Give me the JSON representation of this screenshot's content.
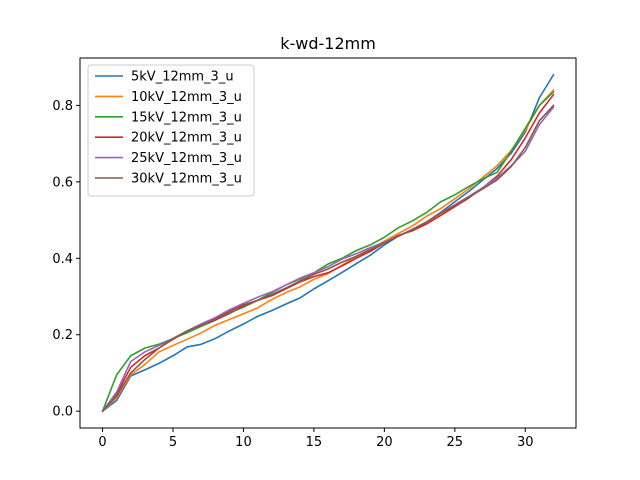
{
  "chart_data": {
    "type": "line",
    "title": "k-wd-12mm",
    "xlabel": "",
    "ylabel": "",
    "xlim": [
      -1.6,
      33.6
    ],
    "ylim": [
      -0.044,
      0.924
    ],
    "xticks": [
      0,
      5,
      10,
      15,
      20,
      25,
      30
    ],
    "yticks": [
      0.0,
      0.2,
      0.4,
      0.6,
      0.8
    ],
    "ytick_labels": [
      "0.0",
      "0.2",
      "0.4",
      "0.6",
      "0.8"
    ],
    "grid": false,
    "legend_position": "upper-left",
    "x": [
      0,
      1,
      2,
      3,
      4,
      5,
      6,
      7,
      8,
      9,
      10,
      11,
      12,
      13,
      14,
      15,
      16,
      17,
      18,
      19,
      20,
      21,
      22,
      23,
      24,
      25,
      26,
      27,
      28,
      29,
      30,
      31,
      32
    ],
    "series": [
      {
        "name": "5kV_12mm_3_u",
        "color": "#1f77b4",
        "values": [
          0.0,
          0.028,
          0.092,
          0.108,
          0.125,
          0.145,
          0.168,
          0.175,
          0.19,
          0.21,
          0.228,
          0.248,
          0.263,
          0.28,
          0.296,
          0.32,
          0.341,
          0.363,
          0.386,
          0.408,
          0.435,
          0.458,
          0.476,
          0.495,
          0.52,
          0.548,
          0.575,
          0.605,
          0.635,
          0.675,
          0.73,
          0.82,
          0.88
        ]
      },
      {
        "name": "10kV_12mm_3_u",
        "color": "#ff7f0e",
        "values": [
          0.0,
          0.035,
          0.095,
          0.122,
          0.155,
          0.172,
          0.188,
          0.205,
          0.225,
          0.24,
          0.255,
          0.27,
          0.292,
          0.31,
          0.325,
          0.345,
          0.36,
          0.382,
          0.405,
          0.425,
          0.445,
          0.465,
          0.485,
          0.51,
          0.53,
          0.556,
          0.582,
          0.612,
          0.642,
          0.682,
          0.735,
          0.8,
          0.84
        ]
      },
      {
        "name": "15kV_12mm_3_u",
        "color": "#2ca02c",
        "values": [
          0.0,
          0.095,
          0.145,
          0.165,
          0.175,
          0.19,
          0.205,
          0.222,
          0.238,
          0.258,
          0.272,
          0.29,
          0.31,
          0.33,
          0.345,
          0.362,
          0.385,
          0.4,
          0.42,
          0.435,
          0.455,
          0.48,
          0.498,
          0.52,
          0.548,
          0.566,
          0.588,
          0.608,
          0.625,
          0.68,
          0.74,
          0.8,
          0.835
        ]
      },
      {
        "name": "20kV_12mm_3_u",
        "color": "#d62728",
        "values": [
          0.0,
          0.045,
          0.115,
          0.145,
          0.165,
          0.188,
          0.21,
          0.225,
          0.242,
          0.262,
          0.278,
          0.29,
          0.302,
          0.32,
          0.338,
          0.352,
          0.362,
          0.38,
          0.4,
          0.418,
          0.44,
          0.46,
          0.472,
          0.49,
          0.512,
          0.535,
          0.558,
          0.585,
          0.615,
          0.658,
          0.715,
          0.78,
          0.828
        ]
      },
      {
        "name": "25kV_12mm_3_u",
        "color": "#9467bd",
        "values": [
          0.0,
          0.05,
          0.13,
          0.155,
          0.172,
          0.19,
          0.21,
          0.228,
          0.245,
          0.265,
          0.282,
          0.298,
          0.312,
          0.33,
          0.348,
          0.362,
          0.378,
          0.398,
          0.412,
          0.428,
          0.442,
          0.458,
          0.475,
          0.495,
          0.518,
          0.54,
          0.562,
          0.585,
          0.61,
          0.642,
          0.68,
          0.75,
          0.795
        ]
      },
      {
        "name": "30kV_12mm_3_u",
        "color": "#8c564b",
        "values": [
          0.0,
          0.04,
          0.1,
          0.135,
          0.165,
          0.19,
          0.21,
          0.225,
          0.238,
          0.255,
          0.275,
          0.29,
          0.305,
          0.322,
          0.34,
          0.358,
          0.372,
          0.39,
          0.405,
          0.422,
          0.44,
          0.458,
          0.475,
          0.495,
          0.518,
          0.538,
          0.56,
          0.582,
          0.605,
          0.64,
          0.69,
          0.76,
          0.8
        ]
      }
    ]
  }
}
